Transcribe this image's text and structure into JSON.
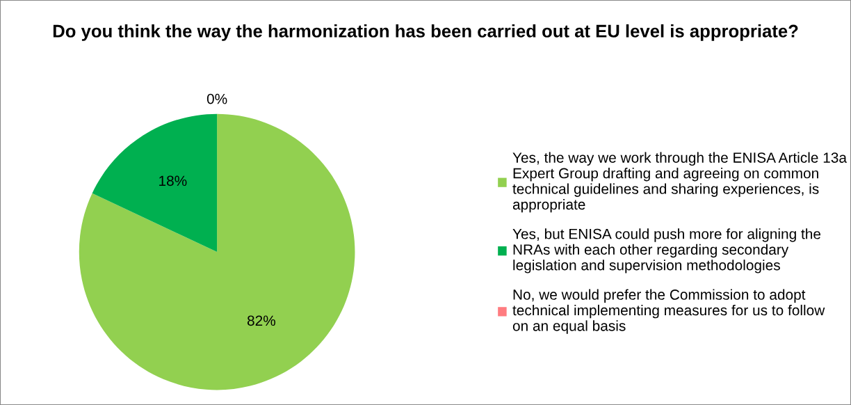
{
  "chart_data": {
    "type": "pie",
    "title": "Do you think the way the harmonization has been carried out at EU level is appropriate?",
    "categories": [
      "Yes, the way we work through the ENISA Article 13a Expert Group drafting and agreeing on common technical guidelines and sharing experiences, is appropriate",
      "Yes, but ENISA could push more for aligning the NRAs with each other regarding secondary legislation and supervision methodologies",
      "No, we would prefer the Commission to adopt technical implementing measures for us to follow on an equal basis"
    ],
    "values": [
      82,
      18,
      0
    ],
    "value_labels": [
      "82%",
      "18%",
      "0%"
    ],
    "colors": [
      "#92d050",
      "#00b050",
      "#ff7c80"
    ],
    "legend": "right"
  }
}
